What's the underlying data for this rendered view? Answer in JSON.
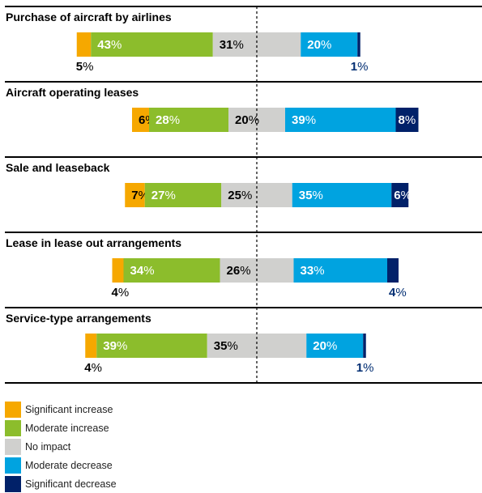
{
  "chart_data": {
    "type": "bar",
    "stacked": true,
    "diverging": true,
    "categories": [
      "Purchase of aircraft by airlines",
      "Aircraft operating leases",
      "Sale and leaseback",
      "Lease in lease out arrangements",
      "Service-type arrangements"
    ],
    "series": [
      {
        "name": "Significant increase",
        "color": "#f6a800",
        "values": [
          5,
          6,
          7,
          4,
          4
        ]
      },
      {
        "name": "Moderate increase",
        "color": "#8cbd2c",
        "values": [
          43,
          28,
          27,
          34,
          39
        ]
      },
      {
        "name": "No impact",
        "color": "#d0d0ce",
        "values": [
          31,
          20,
          25,
          26,
          35
        ]
      },
      {
        "name": "Moderate decrease",
        "color": "#00a3e0",
        "values": [
          20,
          39,
          35,
          33,
          20
        ]
      },
      {
        "name": "Significant decrease",
        "color": "#012169",
        "values": [
          1,
          8,
          6,
          4,
          1
        ]
      }
    ],
    "unit": "%",
    "center": "middle of No impact segment",
    "legend_position": "bottom-left"
  }
}
